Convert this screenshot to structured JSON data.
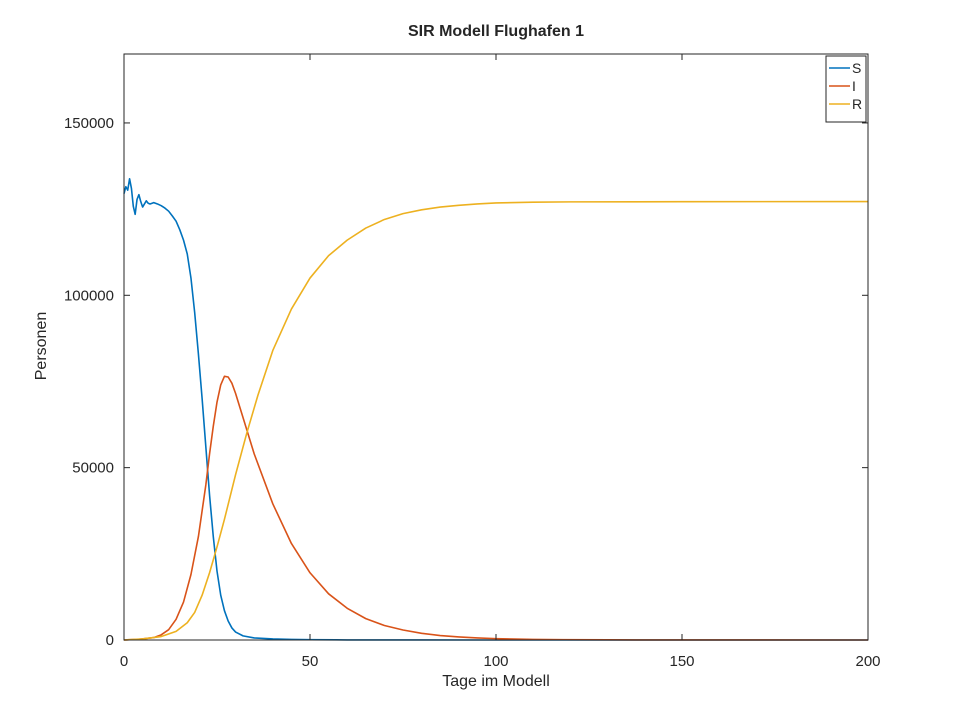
{
  "chart_data": {
    "type": "line",
    "title": "SIR Modell Flughafen 1",
    "xlabel": "Tage im Modell",
    "ylabel": "Personen",
    "xlim": [
      0,
      200
    ],
    "ylim": [
      0,
      170000
    ],
    "xticks": [
      0,
      50,
      100,
      150,
      200
    ],
    "yticks": [
      0,
      50000,
      100000,
      150000
    ],
    "grid": false,
    "legend_position": "top-right",
    "series": [
      {
        "name": "S",
        "color": "#0072bd",
        "points": [
          [
            0,
            129500
          ],
          [
            0.5,
            131500
          ],
          [
            1,
            130500
          ],
          [
            1.5,
            133800
          ],
          [
            2,
            131000
          ],
          [
            2.5,
            125800
          ],
          [
            3,
            123500
          ],
          [
            3.5,
            127800
          ],
          [
            4,
            129200
          ],
          [
            4.5,
            127200
          ],
          [
            5,
            125600
          ],
          [
            5.5,
            126500
          ],
          [
            6,
            127400
          ],
          [
            6.5,
            126700
          ],
          [
            7,
            126500
          ],
          [
            8,
            126900
          ],
          [
            9,
            126500
          ],
          [
            10,
            126000
          ],
          [
            11,
            125300
          ],
          [
            12,
            124400
          ],
          [
            13,
            123000
          ],
          [
            14,
            121500
          ],
          [
            15,
            119000
          ],
          [
            16,
            116000
          ],
          [
            17,
            112000
          ],
          [
            18,
            105000
          ],
          [
            19,
            95000
          ],
          [
            20,
            83000
          ],
          [
            21,
            70000
          ],
          [
            22,
            56000
          ],
          [
            23,
            42000
          ],
          [
            24,
            30000
          ],
          [
            25,
            20000
          ],
          [
            26,
            13000
          ],
          [
            27,
            8500
          ],
          [
            28,
            5500
          ],
          [
            29,
            3500
          ],
          [
            30,
            2300
          ],
          [
            32,
            1200
          ],
          [
            35,
            600
          ],
          [
            40,
            300
          ],
          [
            45,
            150
          ],
          [
            50,
            80
          ],
          [
            57,
            40
          ],
          [
            60,
            20
          ],
          [
            80,
            5
          ],
          [
            100,
            0
          ],
          [
            150,
            0
          ],
          [
            200,
            0
          ]
        ]
      },
      {
        "name": "I",
        "color": "#d95319",
        "points": [
          [
            0,
            0
          ],
          [
            4,
            200
          ],
          [
            8,
            700
          ],
          [
            10,
            1500
          ],
          [
            12,
            3000
          ],
          [
            14,
            6000
          ],
          [
            16,
            11000
          ],
          [
            18,
            19000
          ],
          [
            20,
            30000
          ],
          [
            22,
            45000
          ],
          [
            23,
            54000
          ],
          [
            24,
            62000
          ],
          [
            25,
            69000
          ],
          [
            26,
            74000
          ],
          [
            27,
            76500
          ],
          [
            28,
            76300
          ],
          [
            29,
            74500
          ],
          [
            30,
            71500
          ],
          [
            32,
            64500
          ],
          [
            35,
            54000
          ],
          [
            40,
            39500
          ],
          [
            45,
            28000
          ],
          [
            50,
            19500
          ],
          [
            55,
            13400
          ],
          [
            60,
            9200
          ],
          [
            65,
            6200
          ],
          [
            70,
            4200
          ],
          [
            75,
            2900
          ],
          [
            80,
            1950
          ],
          [
            85,
            1300
          ],
          [
            90,
            900
          ],
          [
            95,
            600
          ],
          [
            100,
            400
          ],
          [
            105,
            270
          ],
          [
            110,
            180
          ],
          [
            118,
            100
          ],
          [
            130,
            40
          ],
          [
            150,
            10
          ],
          [
            200,
            0
          ]
        ]
      },
      {
        "name": "R",
        "color": "#edb120",
        "points": [
          [
            0,
            0
          ],
          [
            5,
            300
          ],
          [
            10,
            1000
          ],
          [
            14,
            2500
          ],
          [
            17,
            5000
          ],
          [
            19,
            8000
          ],
          [
            21,
            13000
          ],
          [
            23,
            19500
          ],
          [
            25,
            27000
          ],
          [
            27,
            35000
          ],
          [
            30,
            48000
          ],
          [
            33,
            60000
          ],
          [
            36,
            71000
          ],
          [
            40,
            84000
          ],
          [
            45,
            96000
          ],
          [
            50,
            105000
          ],
          [
            55,
            111500
          ],
          [
            60,
            116000
          ],
          [
            65,
            119500
          ],
          [
            70,
            122000
          ],
          [
            75,
            123700
          ],
          [
            80,
            124800
          ],
          [
            85,
            125600
          ],
          [
            90,
            126100
          ],
          [
            95,
            126500
          ],
          [
            100,
            126800
          ],
          [
            110,
            127000
          ],
          [
            120,
            127100
          ],
          [
            150,
            127150
          ],
          [
            200,
            127200
          ]
        ]
      }
    ]
  }
}
